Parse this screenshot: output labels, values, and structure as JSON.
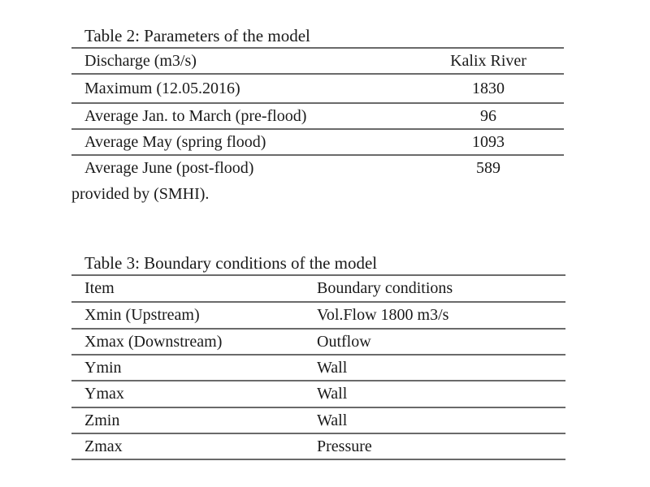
{
  "colors": {
    "rule": "#6a6a6a",
    "text": "#1a1a1a",
    "background": "#ffffff"
  },
  "table2": {
    "title": "Table 2: Parameters of the model",
    "columns": [
      "Discharge (m3/s)",
      "Kalix River"
    ],
    "rows": [
      {
        "label": "Maximum (12.05.2016)",
        "value": "1830"
      },
      {
        "label": "Average Jan. to March (pre-flood)",
        "value": "96"
      },
      {
        "label": "Average May (spring flood)",
        "value": "1093"
      },
      {
        "label": "Average June (post-flood)",
        "value": "589"
      }
    ],
    "footnote": "provided by (SMHI)."
  },
  "table3": {
    "title": "Table 3: Boundary conditions of the model",
    "columns": [
      "Item",
      "Boundary conditions"
    ],
    "rows": [
      {
        "label": "Xmin (Upstream)",
        "value": "Vol.Flow 1800 m3/s"
      },
      {
        "label": "Xmax (Downstream)",
        "value": "Outflow"
      },
      {
        "label": "Ymin",
        "value": "Wall"
      },
      {
        "label": "Ymax",
        "value": "Wall"
      },
      {
        "label": "Zmin",
        "value": "Wall"
      },
      {
        "label": "Zmax",
        "value": "Pressure"
      }
    ]
  }
}
